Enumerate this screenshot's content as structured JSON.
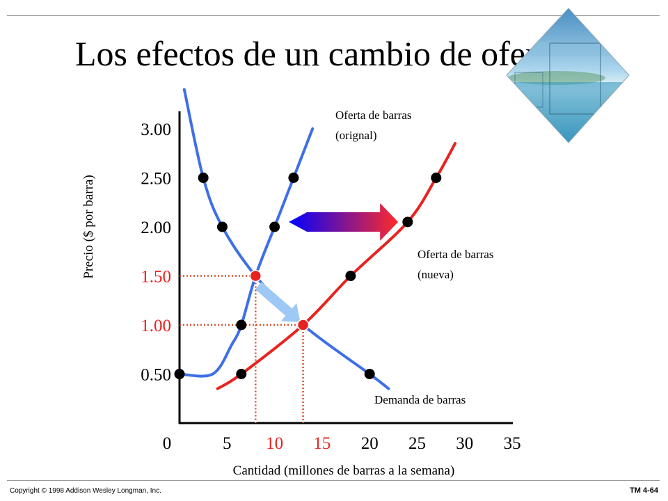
{
  "title": "Los efectos de un cambio de oferta",
  "footer": {
    "copyright": "Copyright © 1998 Addison Wesley Longman, Inc.",
    "slide_id": "TM 4-64"
  },
  "decoration": {
    "icon": "beach-photo-diamond"
  },
  "colors": {
    "blue_curve": "#3f6fe8",
    "red_curve": "#e8231f",
    "dots": "#000000",
    "equilibrium": "#e8231f",
    "guide": "#d9502a",
    "shift_arrow_start": "#0000ff",
    "shift_arrow_end": "#ff2a2a",
    "move_arrow": "#9ec8f5"
  },
  "chart_data": {
    "type": "line",
    "xlabel": "Cantidad (millones de barras a la semana)",
    "ylabel": "Precio ($ por barra)",
    "xlim": [
      0,
      35
    ],
    "ylim": [
      0,
      3.25
    ],
    "x_ticks": [
      "0",
      "5",
      "10",
      "15",
      "20",
      "25",
      "30",
      "35"
    ],
    "y_ticks": [
      {
        "value": 3.0,
        "label": "3.00",
        "highlight": false
      },
      {
        "value": 2.5,
        "label": "2.50",
        "highlight": false
      },
      {
        "value": 2.0,
        "label": "2.00",
        "highlight": false
      },
      {
        "value": 1.5,
        "label": "1.50",
        "highlight": true
      },
      {
        "value": 1.0,
        "label": "1.00",
        "highlight": true
      },
      {
        "value": 0.5,
        "label": "0.50",
        "highlight": false
      }
    ],
    "series": [
      {
        "name": "Demanda de barras",
        "color": "#3f6fe8",
        "curve": [
          [
            0.5,
            3.4
          ],
          [
            2.5,
            2.5
          ],
          [
            4.5,
            2.0
          ],
          [
            8,
            1.5
          ],
          [
            13,
            1.0
          ],
          [
            20,
            0.5
          ],
          [
            22,
            0.35
          ]
        ],
        "points": [
          [
            2.5,
            2.5
          ],
          [
            4.5,
            2.0
          ],
          [
            13,
            1.0
          ],
          [
            20,
            0.5
          ]
        ]
      },
      {
        "name": "Oferta de barras (orignal)",
        "label_lines": [
          "Oferta de barras",
          "(orignal)"
        ],
        "color": "#3f6fe8",
        "curve": [
          [
            0,
            0.5
          ],
          [
            3.5,
            0.5
          ],
          [
            5.5,
            0.8
          ],
          [
            6.5,
            1.0
          ],
          [
            8,
            1.5
          ],
          [
            10,
            2.0
          ],
          [
            12,
            2.5
          ],
          [
            14,
            3.0
          ]
        ],
        "points": [
          [
            0,
            0.5
          ],
          [
            6.5,
            1.0
          ],
          [
            10,
            2.0
          ],
          [
            12,
            2.5
          ]
        ]
      },
      {
        "name": "Oferta de barras (nueva)",
        "label_lines": [
          "Oferta de barras",
          "(nueva)"
        ],
        "color": "#e8231f",
        "curve": [
          [
            4,
            0.35
          ],
          [
            6.5,
            0.5
          ],
          [
            13,
            1.0
          ],
          [
            18,
            1.5
          ],
          [
            24,
            2.05
          ],
          [
            27,
            2.5
          ],
          [
            29,
            2.85
          ]
        ],
        "points": [
          [
            6.5,
            0.5
          ],
          [
            18,
            1.5
          ],
          [
            24,
            2.05
          ],
          [
            27,
            2.5
          ]
        ]
      }
    ],
    "equilibria": [
      {
        "x": 8,
        "y": 1.5
      },
      {
        "x": 13,
        "y": 1.0
      }
    ],
    "shift_arrow": {
      "from": [
        11.5,
        2.05
      ],
      "to": [
        23,
        2.05
      ]
    },
    "movement_arrow": {
      "from": [
        8,
        1.5
      ],
      "to": [
        13,
        1.0
      ]
    }
  }
}
